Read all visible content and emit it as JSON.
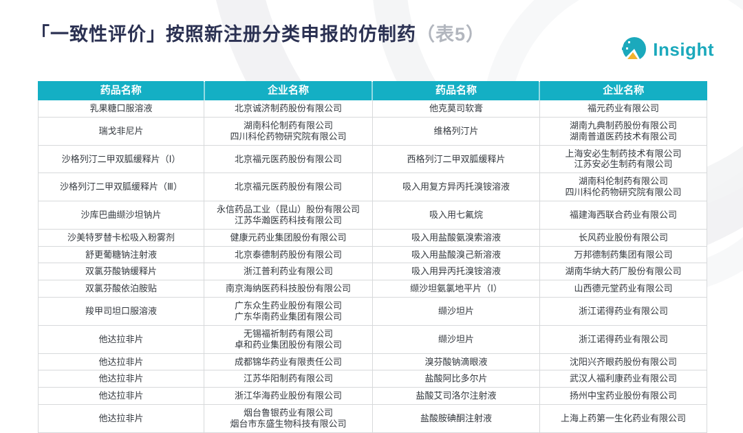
{
  "title": {
    "main": "「一致性评价」按照新注册分类申报的仿制药",
    "suffix": "（表5）"
  },
  "logo": {
    "text": "Insight",
    "circle_icon": "pie-chart-icon"
  },
  "colors": {
    "title_navy": "#2b3152",
    "suffix_gray": "#b2b6be",
    "header_teal": "#14afc4",
    "logo_teal": "#1ba9bc",
    "logo_yellow": "#f2b22c",
    "cell_border": "#d7d9db",
    "cell_text": "#34393f"
  },
  "table": {
    "headers": [
      "药品名称",
      "企业名称",
      "药品名称",
      "企业名称"
    ],
    "rows": [
      [
        "乳果糖口服溶液",
        "北京诚济制药股份有限公司",
        "他克莫司软膏",
        "福元药业有限公司"
      ],
      [
        "瑞戈非尼片",
        "湖南科伦制药有限公司\n四川科伦药物研究院有限公司",
        "维格列汀片",
        "湖南九典制药股份有限公司\n湖南普道医药技术有限公司"
      ],
      [
        "沙格列汀二甲双胍缓释片（Ⅰ）",
        "北京福元医药股份有限公司",
        "西格列汀二甲双胍缓释片",
        "上海安必生制药技术有限公司\n江苏安必生制药有限公司"
      ],
      [
        "沙格列汀二甲双胍缓释片（Ⅲ）",
        "北京福元医药股份有限公司",
        "吸入用复方异丙托溴铵溶液",
        "湖南科伦制药有限公司\n四川科伦药物研究院有限公司"
      ],
      [
        "沙库巴曲缬沙坦钠片",
        "永信药品工业（昆山）股份有限公司\n江苏华瀚医药科技有限公司",
        "吸入用七氟烷",
        "福建海西联合药业有限公司"
      ],
      [
        "沙美特罗替卡松吸入粉雾剂",
        "健康元药业集团股份有限公司",
        "吸入用盐酸氨溴索溶液",
        "长风药业股份有限公司"
      ],
      [
        "舒更葡糖钠注射液",
        "北京泰德制药股份有限公司",
        "吸入用盐酸溴己新溶液",
        "万邦德制药集团有限公司"
      ],
      [
        "双氯芬酸钠缓释片",
        "浙江普利药业有限公司",
        "吸入用异丙托溴铵溶液",
        "湖南华纳大药厂股份有限公司"
      ],
      [
        "双氯芬酸依泊胺贴",
        "南京海纳医药科技股份有限公司",
        "缬沙坦氨氯地平片（Ⅰ）",
        "山西德元堂药业有限公司"
      ],
      [
        "羧甲司坦口服溶液",
        "广东众生药业股份有限公司\n广东华南药业集团有限公司",
        "缬沙坦片",
        "浙江诺得药业有限公司"
      ],
      [
        "他达拉非片",
        "无锡福祈制药有限公司\n卓和药业集团股份有限公司",
        "缬沙坦片",
        "浙江诺得药业有限公司"
      ],
      [
        "他达拉非片",
        "成都锦华药业有限责任公司",
        "溴芬酸钠滴眼液",
        "沈阳兴齐眼药股份有限公司"
      ],
      [
        "他达拉非片",
        "江苏华阳制药有限公司",
        "盐酸阿比多尔片",
        "武汉人福利康药业有限公司"
      ],
      [
        "他达拉非片",
        "浙江华海药业股份有限公司",
        "盐酸艾司洛尔注射液",
        "扬州中宝药业股份有限公司"
      ],
      [
        "他达拉非片",
        "烟台鲁银药业有限公司\n烟台市东盛生物科技有限公司",
        "盐酸胺碘酮注射液",
        "上海上药第一生化药业有限公司"
      ]
    ]
  }
}
